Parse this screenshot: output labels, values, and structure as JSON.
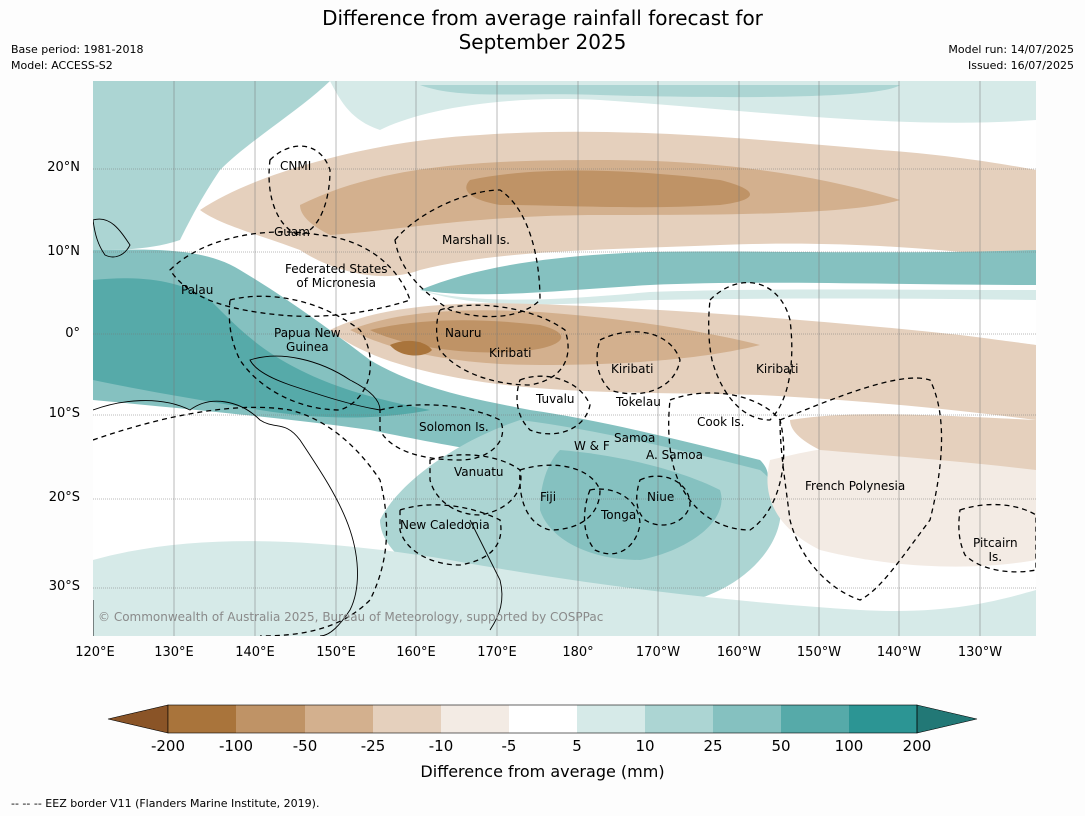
{
  "title_line1": "Difference from average rainfall forecast for",
  "title_line2": "September 2025",
  "meta": {
    "base_period": "Base period: 1981-2018",
    "model": "Model: ACCESS-S2",
    "model_run": "Model run: 14/07/2025",
    "issued": "Issued: 16/07/2025"
  },
  "lat_labels": [
    "20°N",
    "10°N",
    "0°",
    "10°S",
    "20°S",
    "30°S"
  ],
  "lon_labels": [
    "120°E",
    "130°E",
    "140°E",
    "150°E",
    "160°E",
    "170°E",
    "180°",
    "170°W",
    "160°W",
    "150°W",
    "140°W",
    "130°W"
  ],
  "places": {
    "cnmi": "CNMI",
    "guam": "Guam",
    "marshall": "Marshall Is.",
    "fsm": "Federated States\nof Micronesia",
    "palau": "Palau",
    "png": "Papua New\nGuinea",
    "nauru": "Nauru",
    "kiribati_w": "Kiribati",
    "kiribati_c": "Kiribati",
    "kiribati_e": "Kiribati",
    "tuvalu": "Tuvalu",
    "tokelau": "Tokelau",
    "cook": "Cook Is.",
    "solomon": "Solomon Is.",
    "wf": "W & F",
    "samoa": "Samoa",
    "asamoa": "A. Samoa",
    "vanuatu": "Vanuatu",
    "fiji": "Fiji",
    "niue": "Niue",
    "tonga": "Tonga",
    "frpoly": "French Polynesia",
    "newcal": "New Caledonia",
    "pitcairn": "Pitcairn\nIs."
  },
  "copyright": "© Commonwealth of Australia 2025, Bureau of Meteorology, supported by COSPPac",
  "colorbar": {
    "labels": [
      "-200",
      "-100",
      "-50",
      "-25",
      "-10",
      "-5",
      "5",
      "10",
      "25",
      "50",
      "100",
      "200"
    ],
    "colors": [
      "#8a5427",
      "#a9743b",
      "#bf9366",
      "#d3b08e",
      "#e5d0bd",
      "#f3ebe4",
      "#ffffff",
      "#d6eae8",
      "#acd5d3",
      "#85c1c0",
      "#56aaa9",
      "#2c9594",
      "#227876"
    ],
    "title": "Difference from average (mm)"
  },
  "eez_note": "--  --  -- EEZ border V11 (Flanders Marine Institute, 2019)."
}
